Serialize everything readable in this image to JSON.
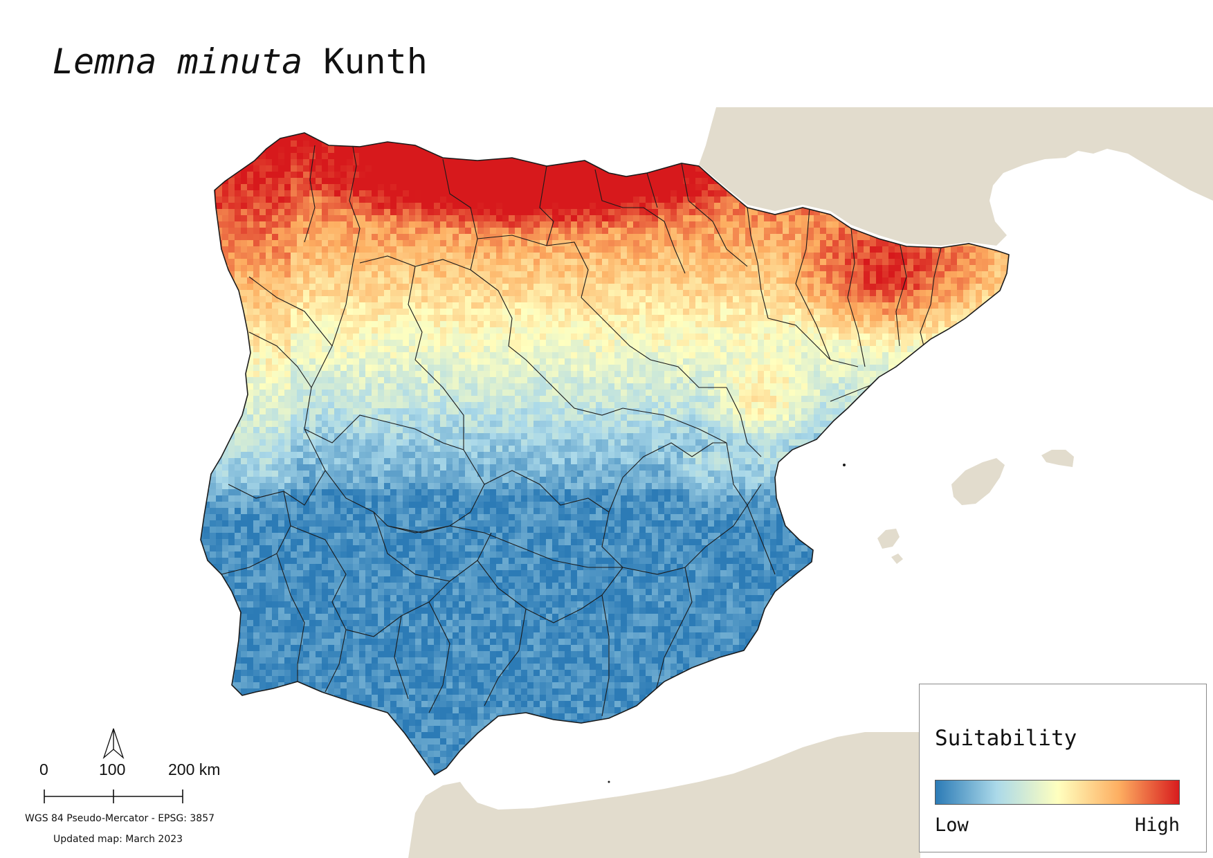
{
  "title": {
    "species": "Lemna minuta",
    "author": "Kunth"
  },
  "legend": {
    "title": "Suitability",
    "low_label": "Low",
    "high_label": "High",
    "ramp_colors": [
      "#2c7bb6",
      "#abd9e9",
      "#ffffbf",
      "#fdae61",
      "#d7191c"
    ]
  },
  "scale_bar": {
    "labels": [
      "0",
      "100",
      "200 km"
    ],
    "north_arrow_icon": "north-arrow-icon"
  },
  "crs_text": "WGS 84 Pseudo-Mercator  - EPSG: 3857",
  "updated_text": "Updated map: March 2023",
  "colors": {
    "land_background": "#e2dccd",
    "sea": "#ffffff",
    "boundary": "#1a1a1a"
  }
}
